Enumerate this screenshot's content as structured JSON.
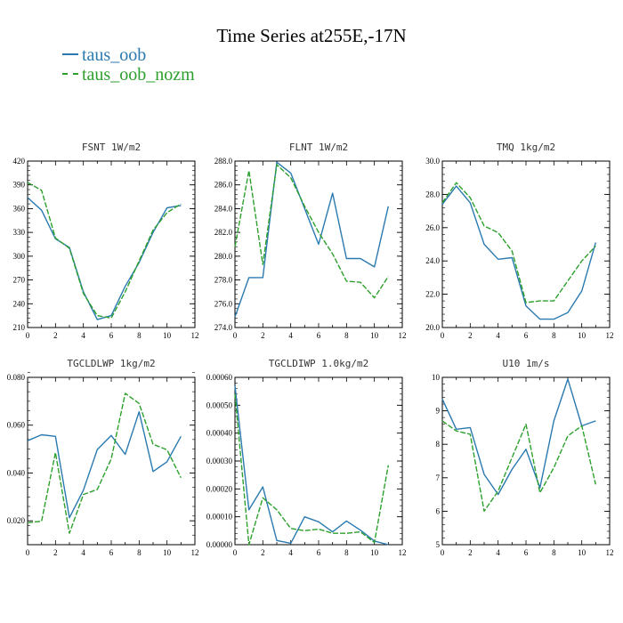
{
  "title": "Time Series at255E,-17N",
  "legend": [
    {
      "label": "taus_oob",
      "color": "#2a7ab0"
    },
    {
      "label": "taus_oob_nozm",
      "color": "#2ca02c"
    }
  ],
  "chart_data": [
    {
      "type": "line",
      "title": "FSNT   1W/m2",
      "x": [
        0,
        1,
        2,
        3,
        4,
        5,
        6,
        7,
        8,
        9,
        10,
        11
      ],
      "xlim": [
        0,
        12
      ],
      "xticks": [
        "0",
        "2",
        "4",
        "6",
        "8",
        "10",
        "12"
      ],
      "ylim": [
        210,
        420
      ],
      "yticks": [
        "210",
        "240",
        "270",
        "300",
        "330",
        "360",
        "390",
        "420"
      ],
      "series": [
        {
          "name": "taus_oob",
          "values": [
            374,
            358,
            322,
            311,
            255,
            220,
            225,
            262,
            292,
            330,
            361,
            364
          ]
        },
        {
          "name": "taus_oob_nozm",
          "values": [
            393,
            383,
            323,
            310,
            253,
            225,
            222,
            255,
            294,
            333,
            355,
            366
          ]
        }
      ]
    },
    {
      "type": "line",
      "title": "FLNT   1W/m2",
      "x": [
        0,
        1,
        2,
        3,
        4,
        5,
        6,
        7,
        8,
        9,
        10,
        11
      ],
      "xlim": [
        0,
        12
      ],
      "xticks": [
        "0",
        "2",
        "4",
        "6",
        "8",
        "10",
        "12"
      ],
      "ylim": [
        274,
        288
      ],
      "yticks": [
        "274.0",
        "276.0",
        "278.0",
        "280.0",
        "282.0",
        "284.0",
        "286.0",
        "288.0"
      ],
      "series": [
        {
          "name": "taus_oob",
          "values": [
            274.9,
            278.2,
            278.2,
            287.9,
            287.0,
            284.0,
            281.0,
            285.3,
            279.8,
            279.8,
            279.1,
            284.2
          ]
        },
        {
          "name": "taus_oob_nozm",
          "values": [
            280.8,
            287.2,
            279.3,
            287.7,
            286.6,
            284.2,
            282.0,
            280.2,
            277.9,
            277.8,
            276.5,
            278.3
          ]
        }
      ]
    },
    {
      "type": "line",
      "title": "TMQ   1kg/m2",
      "x": [
        0,
        1,
        2,
        3,
        4,
        5,
        6,
        7,
        8,
        9,
        10,
        11
      ],
      "xlim": [
        0,
        12
      ],
      "xticks": [
        "0",
        "2",
        "4",
        "6",
        "8",
        "10",
        "12"
      ],
      "ylim": [
        20,
        30
      ],
      "yticks": [
        "20.0",
        "22.0",
        "24.0",
        "26.0",
        "28.0",
        "30.0"
      ],
      "series": [
        {
          "name": "taus_oob",
          "values": [
            27.4,
            28.5,
            27.5,
            25.0,
            24.1,
            24.2,
            21.3,
            20.5,
            20.5,
            20.9,
            22.2,
            25.1
          ]
        },
        {
          "name": "taus_oob_nozm",
          "values": [
            27.5,
            28.7,
            27.8,
            26.1,
            25.7,
            24.6,
            21.5,
            21.6,
            21.6,
            22.8,
            24.0,
            24.9
          ]
        }
      ]
    },
    {
      "type": "line",
      "title": "TGCLDLWP   1kg/m2",
      "x": [
        0,
        1,
        2,
        3,
        4,
        5,
        6,
        7,
        8,
        9,
        10,
        11
      ],
      "xlim": [
        0,
        12
      ],
      "xticks": [
        "0",
        "2",
        "4",
        "6",
        "8",
        "10",
        "12"
      ],
      "ylim": [
        0.01,
        0.08
      ],
      "yticks": [
        "0.020",
        "0.040",
        "0.060",
        "0.080"
      ],
      "series": [
        {
          "name": "taus_oob",
          "values": [
            0.0535,
            0.056,
            0.0553,
            0.0213,
            0.0328,
            0.0498,
            0.0557,
            0.0478,
            0.0656,
            0.0406,
            0.0447,
            0.0553
          ]
        },
        {
          "name": "taus_oob_nozm",
          "values": [
            0.0192,
            0.0198,
            0.0485,
            0.0148,
            0.031,
            0.0331,
            0.0459,
            0.0733,
            0.0691,
            0.052,
            0.0497,
            0.038
          ]
        }
      ]
    },
    {
      "type": "line",
      "title": "TGCLDIWP   1.0kg/m2",
      "x": [
        0,
        1,
        2,
        3,
        4,
        5,
        6,
        7,
        8,
        9,
        10,
        11
      ],
      "xlim": [
        0,
        12
      ],
      "xticks": [
        "0",
        "2",
        "4",
        "6",
        "8",
        "10",
        "12"
      ],
      "ylim": [
        0,
        0.0006
      ],
      "yticks": [
        "0.00000",
        "0.00010",
        "0.00020",
        "0.00030",
        "0.00040",
        "0.00050",
        "0.00060"
      ],
      "series": [
        {
          "name": "taus_oob",
          "values": [
            0.00057,
            0.000125,
            0.000207,
            1.5e-05,
            5e-06,
            0.0001,
            8.2e-05,
            4.6e-05,
            8.5e-05,
            5.2e-05,
            1.3e-05,
            0.0
          ]
        },
        {
          "name": "taus_oob_nozm",
          "values": [
            0.00054,
            0.0,
            0.000168,
            0.000125,
            5.8e-05,
            5e-05,
            5.6e-05,
            4.1e-05,
            4.1e-05,
            4.6e-05,
            8e-06,
            0.000285
          ]
        }
      ]
    },
    {
      "type": "line",
      "title": "U10   1m/s",
      "x": [
        0,
        1,
        2,
        3,
        4,
        5,
        6,
        7,
        8,
        9,
        10,
        11
      ],
      "xlim": [
        0,
        12
      ],
      "xticks": [
        "0",
        "2",
        "4",
        "6",
        "8",
        "10",
        "12"
      ],
      "ylim": [
        5,
        10
      ],
      "yticks": [
        "5",
        "6",
        "7",
        "8",
        "9",
        "10"
      ],
      "series": [
        {
          "name": "taus_oob",
          "values": [
            9.35,
            8.45,
            8.5,
            7.1,
            6.5,
            7.25,
            7.85,
            6.7,
            8.7,
            9.95,
            8.55,
            8.7
          ]
        },
        {
          "name": "taus_oob_nozm",
          "values": [
            8.7,
            8.4,
            8.3,
            6.0,
            6.6,
            7.6,
            8.6,
            6.55,
            7.3,
            8.25,
            8.55,
            6.8
          ]
        }
      ]
    }
  ]
}
